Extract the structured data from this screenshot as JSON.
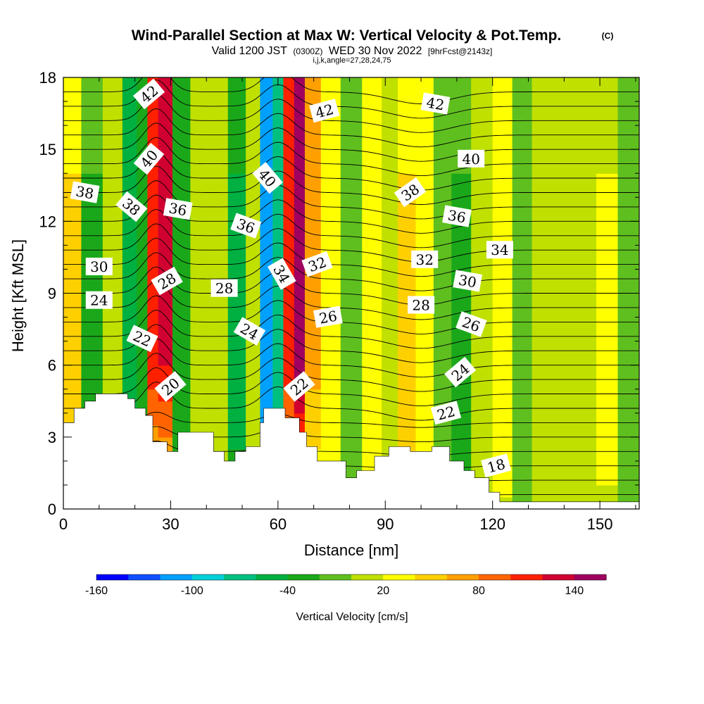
{
  "chart_data": {
    "type": "heatmap",
    "title": "Wind-Parallel Section at Max W: Vertical Velocity & Pot.Temp.",
    "title_mark": "(C)",
    "subtitle": {
      "prefix": "Valid 1200 JST",
      "utc": "(0300Z)",
      "date": "WED 30 Nov 2022",
      "forecast": "[9hrFcst@2143z]"
    },
    "subtitle2": "i,j,k,angle=27,28,24,75",
    "xlabel": "Distance [nm]",
    "ylabel": "Height [Kft MSL]",
    "xlim": [
      0,
      161
    ],
    "ylim": [
      0,
      18
    ],
    "x_ticks": [
      "0",
      "30",
      "60",
      "90",
      "120",
      "150"
    ],
    "x_tick_values": [
      0,
      30,
      60,
      90,
      120,
      150
    ],
    "y_ticks": [
      "0",
      "3",
      "6",
      "9",
      "12",
      "15",
      "18"
    ],
    "y_tick_values": [
      0,
      3,
      6,
      9,
      12,
      15,
      18
    ],
    "colorbar": {
      "label": "Vertical Velocity [cm/s]",
      "tick_labels": [
        "-160",
        "-100",
        "-40",
        "20",
        "80",
        "140"
      ],
      "tick_values": [
        -160,
        -100,
        -40,
        20,
        80,
        140
      ],
      "range": [
        -160,
        160
      ],
      "step": 20,
      "colors": [
        "#0000ff",
        "#0f4fff",
        "#00a0ff",
        "#00d0d8",
        "#00c080",
        "#00b040",
        "#1aa81a",
        "#5fbf1f",
        "#c0e000",
        "#ffff00",
        "#ffd000",
        "#ffa000",
        "#ff6400",
        "#ff2000",
        "#d00030",
        "#a00060",
        "#6a00a0"
      ]
    },
    "velocity_columns": [
      {
        "x": 2,
        "w": 40,
        "wmin": 1.5
      },
      {
        "x": 8,
        "w": -25,
        "wmin": 2
      },
      {
        "x": 14,
        "w": 10,
        "wmin": 2
      },
      {
        "x": 19,
        "w": -55,
        "wmin": 2
      },
      {
        "x": 22,
        "w": -35,
        "wmin": 2
      },
      {
        "x": 25,
        "w": 110,
        "wmin": 6
      },
      {
        "x": 28,
        "w": 120,
        "wmin": 6
      },
      {
        "x": 33,
        "w": -30,
        "wmin": 3
      },
      {
        "x": 38,
        "w": 15,
        "wmin": 3
      },
      {
        "x": 43,
        "w": 5,
        "wmin": 3
      },
      {
        "x": 49,
        "w": -45,
        "wmin": 3
      },
      {
        "x": 53,
        "w": 10,
        "wmin": 3
      },
      {
        "x": 57,
        "w": -120,
        "wmin": 5
      },
      {
        "x": 60,
        "w": -80,
        "wmin": 5
      },
      {
        "x": 63,
        "w": 100,
        "wmin": 5
      },
      {
        "x": 66,
        "w": 140,
        "wmin": 5
      },
      {
        "x": 69,
        "w": 60,
        "wmin": 5
      },
      {
        "x": 75,
        "w": 25,
        "wmin": 2
      },
      {
        "x": 80,
        "w": -20,
        "wmin": 2
      },
      {
        "x": 87,
        "w": 25,
        "wmin": 2
      },
      {
        "x": 91,
        "w": 15,
        "wmin": 2
      },
      {
        "x": 96,
        "w": 45,
        "wmin": 2
      },
      {
        "x": 101,
        "w": 30,
        "wmin": 2
      },
      {
        "x": 106,
        "w": -10,
        "wmin": 2
      },
      {
        "x": 111,
        "w": -25,
        "wmin": 2
      },
      {
        "x": 117,
        "w": 15,
        "wmin": 1
      },
      {
        "x": 123,
        "w": 25,
        "wmin": 1
      },
      {
        "x": 128,
        "w": -5,
        "wmin": 1
      },
      {
        "x": 134,
        "w": 15,
        "wmin": 1
      },
      {
        "x": 140,
        "w": 10,
        "wmin": 1
      },
      {
        "x": 146,
        "w": 5,
        "wmin": 1
      },
      {
        "x": 152,
        "w": 20,
        "wmin": 1
      },
      {
        "x": 158,
        "w": -10,
        "wmin": 1
      }
    ],
    "terrain_top": [
      [
        0,
        3.6
      ],
      [
        3,
        3.6
      ],
      [
        3,
        4.2
      ],
      [
        6,
        4.2
      ],
      [
        6,
        4.5
      ],
      [
        9,
        4.5
      ],
      [
        9,
        4.8
      ],
      [
        18,
        4.8
      ],
      [
        18,
        4.6
      ],
      [
        20,
        4.6
      ],
      [
        20,
        4.2
      ],
      [
        23,
        4.2
      ],
      [
        23,
        3.9
      ],
      [
        25,
        3.9
      ],
      [
        25,
        2.8
      ],
      [
        29,
        2.8
      ],
      [
        29,
        2.4
      ],
      [
        32,
        2.4
      ],
      [
        32,
        3.2
      ],
      [
        42,
        3.2
      ],
      [
        42,
        2.4
      ],
      [
        45,
        2.4
      ],
      [
        45,
        2.0
      ],
      [
        48,
        2.0
      ],
      [
        48,
        2.4
      ],
      [
        51,
        2.4
      ],
      [
        51,
        2.6
      ],
      [
        55,
        2.6
      ],
      [
        55,
        3.6
      ],
      [
        56,
        3.6
      ],
      [
        56,
        4.2
      ],
      [
        62,
        4.2
      ],
      [
        62,
        3.8
      ],
      [
        66,
        3.8
      ],
      [
        66,
        3.2
      ],
      [
        68,
        3.2
      ],
      [
        68,
        2.6
      ],
      [
        71,
        2.6
      ],
      [
        71,
        2.0
      ],
      [
        79,
        2.0
      ],
      [
        79,
        1.3
      ],
      [
        82,
        1.3
      ],
      [
        82,
        1.6
      ],
      [
        87,
        1.6
      ],
      [
        87,
        2.2
      ],
      [
        91,
        2.2
      ],
      [
        91,
        2.6
      ],
      [
        97,
        2.6
      ],
      [
        97,
        2.4
      ],
      [
        103,
        2.4
      ],
      [
        103,
        2.6
      ],
      [
        108,
        2.6
      ],
      [
        108,
        2.0
      ],
      [
        112,
        2.0
      ],
      [
        112,
        1.6
      ],
      [
        115,
        1.6
      ],
      [
        115,
        1.3
      ],
      [
        119,
        1.3
      ],
      [
        119,
        0.7
      ],
      [
        122,
        0.7
      ],
      [
        122,
        0.3
      ],
      [
        161,
        0.3
      ]
    ],
    "isentropes": [
      {
        "value": 18,
        "base": 0.6
      },
      {
        "value": 19,
        "base": 1.2
      },
      {
        "value": 20,
        "base": 1.8
      },
      {
        "value": 21,
        "base": 2.4
      },
      {
        "value": 22,
        "base": 3.0
      },
      {
        "value": 23,
        "base": 3.6
      },
      {
        "value": 24,
        "base": 4.2
      },
      {
        "value": 25,
        "base": 4.8
      },
      {
        "value": 26,
        "base": 5.4
      },
      {
        "value": 27,
        "base": 6.0
      },
      {
        "value": 28,
        "base": 6.6
      },
      {
        "value": 29,
        "base": 7.2
      },
      {
        "value": 30,
        "base": 7.8
      },
      {
        "value": 31,
        "base": 8.4
      },
      {
        "value": 32,
        "base": 9.0
      },
      {
        "value": 33,
        "base": 9.6
      },
      {
        "value": 34,
        "base": 10.2
      },
      {
        "value": 35,
        "base": 10.8
      },
      {
        "value": 36,
        "base": 11.4
      },
      {
        "value": 37,
        "base": 12.0
      },
      {
        "value": 38,
        "base": 12.6
      },
      {
        "value": 39,
        "base": 13.2
      },
      {
        "value": 40,
        "base": 13.8
      },
      {
        "value": 41,
        "base": 14.4
      },
      {
        "value": 42,
        "base": 15.0
      },
      {
        "value": 43,
        "base": 15.6
      },
      {
        "value": 44,
        "base": 16.2
      },
      {
        "value": 45,
        "base": 16.8
      },
      {
        "value": 46,
        "base": 17.4
      }
    ],
    "contour_labels": [
      {
        "text": "42",
        "x": 24,
        "y": 17.3,
        "rot": -40
      },
      {
        "text": "42",
        "x": 73,
        "y": 16.6,
        "rot": -15
      },
      {
        "text": "42",
        "x": 104,
        "y": 16.9,
        "rot": 10
      },
      {
        "text": "40",
        "x": 24,
        "y": 14.6,
        "rot": -50
      },
      {
        "text": "40",
        "x": 57,
        "y": 13.8,
        "rot": 50
      },
      {
        "text": "40",
        "x": 114,
        "y": 14.6,
        "rot": 0
      },
      {
        "text": "38",
        "x": 6,
        "y": 13.2,
        "rot": 10
      },
      {
        "text": "38",
        "x": 19,
        "y": 12.6,
        "rot": 40
      },
      {
        "text": "38",
        "x": 97,
        "y": 13.2,
        "rot": -35
      },
      {
        "text": "36",
        "x": 32,
        "y": 12.5,
        "rot": 10
      },
      {
        "text": "36",
        "x": 51,
        "y": 11.8,
        "rot": 20
      },
      {
        "text": "36",
        "x": 110,
        "y": 12.2,
        "rot": 10
      },
      {
        "text": "34",
        "x": 61,
        "y": 9.8,
        "rot": 60
      },
      {
        "text": "34",
        "x": 122,
        "y": 10.8,
        "rot": 0
      },
      {
        "text": "32",
        "x": 71,
        "y": 10.2,
        "rot": -20
      },
      {
        "text": "32",
        "x": 101,
        "y": 10.4,
        "rot": 0
      },
      {
        "text": "30",
        "x": 10,
        "y": 10.1,
        "rot": 0
      },
      {
        "text": "30",
        "x": 113,
        "y": 9.5,
        "rot": 10
      },
      {
        "text": "28",
        "x": 29,
        "y": 9.5,
        "rot": -30
      },
      {
        "text": "28",
        "x": 45,
        "y": 9.2,
        "rot": 0
      },
      {
        "text": "28",
        "x": 100,
        "y": 8.5,
        "rot": 0
      },
      {
        "text": "26",
        "x": 74,
        "y": 8.0,
        "rot": -10
      },
      {
        "text": "26",
        "x": 114,
        "y": 7.7,
        "rot": 20
      },
      {
        "text": "24",
        "x": 10,
        "y": 8.7,
        "rot": 0
      },
      {
        "text": "24",
        "x": 52,
        "y": 7.4,
        "rot": 30
      },
      {
        "text": "24",
        "x": 111,
        "y": 5.7,
        "rot": -40
      },
      {
        "text": "22",
        "x": 22,
        "y": 7.1,
        "rot": 25
      },
      {
        "text": "22",
        "x": 66,
        "y": 5.1,
        "rot": -40
      },
      {
        "text": "22",
        "x": 107,
        "y": 4.0,
        "rot": -15
      },
      {
        "text": "20",
        "x": 30,
        "y": 5.1,
        "rot": -40
      },
      {
        "text": "18",
        "x": 121,
        "y": 1.8,
        "rot": -15
      }
    ]
  }
}
